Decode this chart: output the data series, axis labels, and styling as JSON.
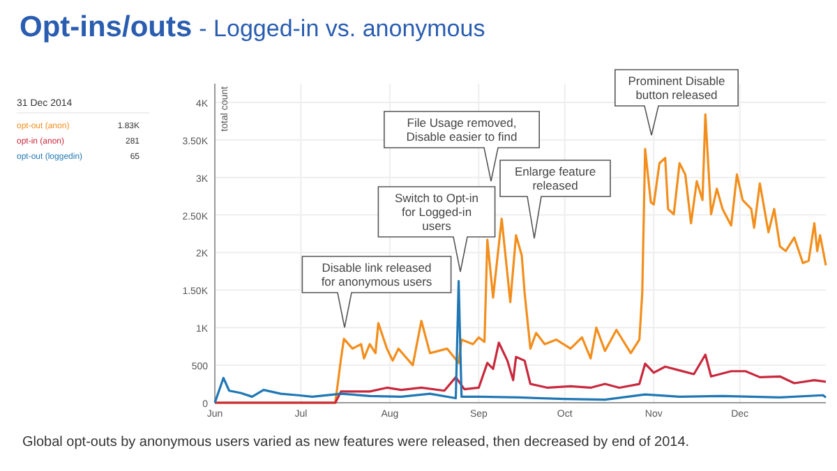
{
  "chart_data": {
    "type": "line",
    "title": "Opt-ins/outs",
    "subtitle": "- Logged-in vs. anonymous",
    "ylabel": "total count",
    "legend": "top left",
    "grid": true,
    "xlim": [
      "2014-06-01",
      "2014-12-31"
    ],
    "xticks": [
      {
        "value": "2014-06-01",
        "label": "Jun"
      },
      {
        "value": "2014-07-01",
        "label": "Jul"
      },
      {
        "value": "2014-08-01",
        "label": "Aug"
      },
      {
        "value": "2014-09-01",
        "label": "Sep"
      },
      {
        "value": "2014-10-01",
        "label": "Oct"
      },
      {
        "value": "2014-11-01",
        "label": "Nov"
      },
      {
        "value": "2014-12-01",
        "label": "Dec"
      }
    ],
    "ylim": [
      0,
      4250
    ],
    "yticks": [
      0,
      500,
      {
        "value": 1000,
        "label": "1K"
      },
      {
        "value": 1500,
        "label": "1.50K"
      },
      {
        "value": 2000,
        "label": "2K"
      },
      {
        "value": 2500,
        "label": "2.50K"
      },
      {
        "value": 3000,
        "label": "3K"
      },
      {
        "value": 3500,
        "label": "3.50K"
      },
      {
        "value": 4000,
        "label": "4K"
      }
    ],
    "series": [
      {
        "name": "opt-out (anon)",
        "color": "#f28e1c",
        "x": [
          "2014-06-01",
          "2014-07-13",
          "2014-07-15",
          "2014-07-16",
          "2014-07-19",
          "2014-07-22",
          "2014-07-23",
          "2014-07-25",
          "2014-07-27",
          "2014-07-28",
          "2014-07-31",
          "2014-08-02",
          "2014-08-04",
          "2014-08-09",
          "2014-08-12",
          "2014-08-15",
          "2014-08-21",
          "2014-08-25",
          "2014-08-26",
          "2014-08-30",
          "2014-09-01",
          "2014-09-03",
          "2014-09-04",
          "2014-09-06",
          "2014-09-09",
          "2014-09-10",
          "2014-09-12",
          "2014-09-14",
          "2014-09-16",
          "2014-09-17",
          "2014-09-19",
          "2014-09-21",
          "2014-09-24",
          "2014-09-28",
          "2014-10-03",
          "2014-10-07",
          "2014-10-10",
          "2014-10-12",
          "2014-10-15",
          "2014-10-19",
          "2014-10-24",
          "2014-10-27",
          "2014-10-28",
          "2014-10-29",
          "2014-10-31",
          "2014-11-01",
          "2014-11-03",
          "2014-11-05",
          "2014-11-06",
          "2014-11-08",
          "2014-11-10",
          "2014-11-12",
          "2014-11-14",
          "2014-11-16",
          "2014-11-18",
          "2014-11-19",
          "2014-11-21",
          "2014-11-23",
          "2014-11-25",
          "2014-11-28",
          "2014-11-30",
          "2014-12-02",
          "2014-12-05",
          "2014-12-06",
          "2014-12-08",
          "2014-12-11",
          "2014-12-13",
          "2014-12-15",
          "2014-12-17",
          "2014-12-20",
          "2014-12-23",
          "2014-12-25",
          "2014-12-27",
          "2014-12-28",
          "2014-12-29",
          "2014-12-31"
        ],
        "values": [
          0,
          0,
          590,
          850,
          720,
          780,
          590,
          780,
          660,
          1060,
          720,
          560,
          720,
          500,
          1090,
          660,
          720,
          530,
          840,
          780,
          870,
          810,
          2170,
          1400,
          2450,
          2080,
          1340,
          2230,
          1960,
          1460,
          720,
          930,
          780,
          840,
          720,
          870,
          590,
          1000,
          690,
          970,
          660,
          840,
          1460,
          3380,
          2670,
          2640,
          3190,
          3260,
          2580,
          2510,
          3190,
          3040,
          2390,
          2950,
          2700,
          3840,
          2510,
          2850,
          2580,
          2360,
          3040,
          2700,
          2580,
          2330,
          2920,
          2270,
          2580,
          2080,
          2020,
          2200,
          1860,
          1890,
          2390,
          2020,
          2230,
          1830
        ]
      },
      {
        "name": "opt-in (anon)",
        "color": "#c8283c",
        "x": [
          "2014-06-01",
          "2014-07-13",
          "2014-07-15",
          "2014-07-25",
          "2014-07-31",
          "2014-08-05",
          "2014-08-12",
          "2014-08-20",
          "2014-08-24",
          "2014-08-27",
          "2014-09-01",
          "2014-09-04",
          "2014-09-06",
          "2014-09-08",
          "2014-09-11",
          "2014-09-13",
          "2014-09-14",
          "2014-09-17",
          "2014-09-19",
          "2014-09-25",
          "2014-10-03",
          "2014-10-10",
          "2014-10-15",
          "2014-10-20",
          "2014-10-27",
          "2014-10-29",
          "2014-11-01",
          "2014-11-05",
          "2014-11-10",
          "2014-11-15",
          "2014-11-19",
          "2014-11-21",
          "2014-11-28",
          "2014-12-03",
          "2014-12-08",
          "2014-12-15",
          "2014-12-20",
          "2014-12-27",
          "2014-12-31"
        ],
        "values": [
          0,
          0,
          150,
          150,
          200,
          170,
          200,
          160,
          340,
          180,
          200,
          530,
          450,
          800,
          560,
          300,
          610,
          560,
          250,
          200,
          220,
          200,
          250,
          200,
          250,
          520,
          400,
          480,
          430,
          380,
          640,
          350,
          420,
          420,
          340,
          350,
          260,
          300,
          280
        ]
      },
      {
        "name": "opt-out (loggedin)",
        "color": "#1f77b4",
        "x": [
          "2014-06-01",
          "2014-06-04",
          "2014-06-06",
          "2014-06-10",
          "2014-06-14",
          "2014-06-18",
          "2014-06-24",
          "2014-06-30",
          "2014-07-05",
          "2014-07-15",
          "2014-07-25",
          "2014-08-05",
          "2014-08-15",
          "2014-08-24",
          "2014-08-25",
          "2014-08-26",
          "2014-09-01",
          "2014-09-15",
          "2014-10-01",
          "2014-10-15",
          "2014-10-29",
          "2014-11-10",
          "2014-11-25",
          "2014-12-15",
          "2014-12-30",
          "2014-12-31"
        ],
        "values": [
          0,
          330,
          160,
          130,
          80,
          170,
          120,
          100,
          80,
          120,
          90,
          80,
          120,
          60,
          1620,
          80,
          80,
          70,
          50,
          40,
          110,
          80,
          90,
          70,
          100,
          70
        ]
      }
    ],
    "annotations": [
      "31 Dec 2014",
      "1.83K",
      "281",
      "65",
      "Disable link released for anonymous users",
      "Switch to Opt-in for Logged-in users",
      "File Usage removed, Disable easier to find",
      "Enlarge feature released",
      "Prominent Disable button released",
      "Global opt-outs by anonymous users varied as new features were released, then decreased by end of 2014."
    ]
  }
}
